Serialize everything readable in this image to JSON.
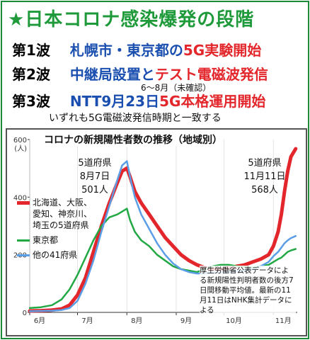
{
  "header": {
    "title": "★日本コロナ感染爆発の段階",
    "wave1_label": "第1波",
    "wave1_text_blue": "札幌市・東京都の",
    "wave1_text_red": "5G実験開始",
    "wave2_label": "第2波",
    "wave2_text_blue": "中継局設置と",
    "wave2_text_red": "テスト電磁波発信",
    "wave2_note": "6～8月（未確認）",
    "wave3_label": "第3波",
    "wave3_text_blue": "NTT9月23日",
    "wave3_text_red": "5G本格運用開始",
    "summary": "いずれも5G電磁波発信時期と一致する"
  },
  "colors": {
    "title_green": "#1e9a3a",
    "blue_text": "#1a4fb0",
    "red_text": "#e3262b",
    "series_red": "#e3262b",
    "series_green": "#22a845",
    "series_blue": "#5b9ee6"
  },
  "chart_data": {
    "type": "line",
    "title": "コロナの新規陽性者数の推移（地域別）",
    "ylabel": "(人)",
    "ylim": [
      0,
      600
    ],
    "y_ticks": [
      "600",
      "400",
      "200",
      "0"
    ],
    "x_ticks": [
      "6月",
      "7月",
      "8月",
      "9月",
      "10月",
      "11月"
    ],
    "x_tick_days": [
      0,
      30,
      61,
      92,
      122,
      153
    ],
    "xlim": [
      0,
      168
    ],
    "x": [
      0,
      7,
      14,
      20,
      25,
      30,
      35,
      40,
      45,
      50,
      55,
      58,
      61,
      63,
      66,
      70,
      75,
      80,
      85,
      90,
      95,
      100,
      105,
      110,
      115,
      120,
      125,
      130,
      135,
      140,
      145,
      150,
      153,
      156,
      158,
      160,
      162,
      164,
      167
    ],
    "series": [
      {
        "name": "北海道、大阪、愛知、神奈川、埼玉の5道府県",
        "color": "#e3262b",
        "width": 5,
        "values": [
          5,
          6,
          8,
          12,
          25,
          60,
          120,
          210,
          300,
          380,
          450,
          490,
          501,
          470,
          420,
          380,
          340,
          300,
          260,
          230,
          200,
          180,
          165,
          155,
          150,
          150,
          155,
          160,
          165,
          175,
          185,
          200,
          230,
          280,
          340,
          420,
          490,
          540,
          568
        ]
      },
      {
        "name": "東京都",
        "color": "#22a845",
        "width": 2.5,
        "values": [
          15,
          18,
          25,
          45,
          80,
          130,
          190,
          250,
          300,
          330,
          340,
          350,
          360,
          320,
          280,
          250,
          230,
          200,
          180,
          160,
          150,
          145,
          140,
          150,
          160,
          165,
          165,
          160,
          158,
          155,
          160,
          165,
          175,
          185,
          190,
          200,
          210,
          215,
          220
        ]
      },
      {
        "name": "他の41府県",
        "color": "#5b9ee6",
        "width": 2.5,
        "values": [
          4,
          5,
          6,
          8,
          15,
          40,
          100,
          180,
          280,
          370,
          460,
          510,
          525,
          470,
          400,
          340,
          290,
          240,
          200,
          170,
          150,
          140,
          135,
          135,
          138,
          140,
          140,
          142,
          145,
          150,
          160,
          175,
          195,
          210,
          225,
          240,
          250,
          258,
          265
        ]
      }
    ],
    "legend": [
      "北海道、大阪、",
      "愛知、神奈川、",
      "埼玉の5道府県",
      "東京都",
      "他の41府県"
    ],
    "annotations": {
      "left": [
        "5道府県",
        "8月7日",
        "501人"
      ],
      "right": [
        "5道府県",
        "11月11日",
        "568人"
      ]
    },
    "source_note": "厚生労働省公表データによる新規陽性判明者数の後方7日間移動平均値。最新の11月11日はNHK集計データによる"
  }
}
